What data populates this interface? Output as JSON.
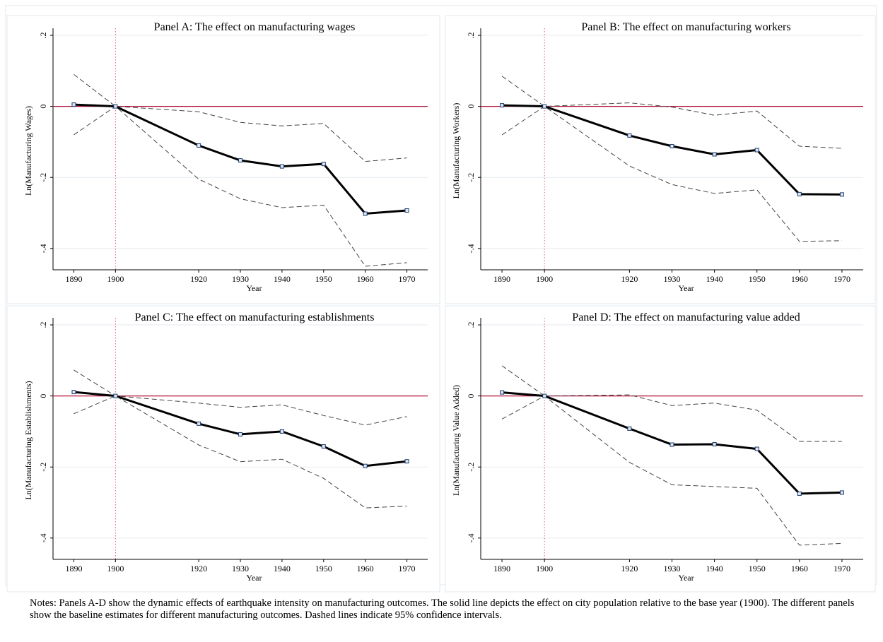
{
  "chart_data": [
    {
      "type": "line",
      "title": "Panel A: The effect on manufacturing wages",
      "xlabel": "Year",
      "ylabel": "Ln(Manufacturing Wages)",
      "x": [
        1890,
        1900,
        1920,
        1930,
        1940,
        1950,
        1960,
        1970
      ],
      "y_ticks": [
        ".2",
        "0",
        "-.2",
        "-.4"
      ],
      "ylim": [
        -0.46,
        0.21
      ],
      "xlim": [
        1885,
        1975
      ],
      "reference_lines": {
        "y": 0,
        "x": 1900
      },
      "series": [
        {
          "style": "solid",
          "values": [
            0.005,
            0.0,
            -0.11,
            -0.152,
            -0.169,
            -0.162,
            -0.302,
            -0.293
          ]
        },
        {
          "style": "dashed",
          "values": [
            0.09,
            0.0,
            -0.015,
            -0.045,
            -0.055,
            -0.048,
            -0.155,
            -0.145
          ]
        },
        {
          "style": "dashed",
          "values": [
            -0.08,
            0.0,
            -0.205,
            -0.26,
            -0.285,
            -0.278,
            -0.45,
            -0.44
          ]
        }
      ]
    },
    {
      "type": "line",
      "title": "Panel B: The effect on manufacturing workers",
      "xlabel": "Year",
      "ylabel": "Ln(Manufacturing Workers)",
      "x": [
        1890,
        1900,
        1920,
        1930,
        1940,
        1950,
        1960,
        1970
      ],
      "y_ticks": [
        ".2",
        "0",
        "-.2",
        "-.4"
      ],
      "ylim": [
        -0.46,
        0.21
      ],
      "xlim": [
        1885,
        1975
      ],
      "reference_lines": {
        "y": 0,
        "x": 1900
      },
      "series": [
        {
          "style": "solid",
          "values": [
            0.003,
            0.0,
            -0.082,
            -0.112,
            -0.135,
            -0.123,
            -0.247,
            -0.248
          ]
        },
        {
          "style": "dashed",
          "values": [
            0.085,
            0.0,
            0.01,
            -0.002,
            -0.025,
            -0.013,
            -0.112,
            -0.118
          ]
        },
        {
          "style": "dashed",
          "values": [
            -0.08,
            0.0,
            -0.168,
            -0.22,
            -0.245,
            -0.235,
            -0.38,
            -0.378
          ]
        }
      ]
    },
    {
      "type": "line",
      "title": "Panel C: The effect on manufacturing establishments",
      "xlabel": "Year",
      "ylabel": "Ln(Manufacturing Establishments)",
      "x": [
        1890,
        1900,
        1920,
        1930,
        1940,
        1950,
        1960,
        1970
      ],
      "y_ticks": [
        ".2",
        "0",
        "-.2",
        "-.4"
      ],
      "ylim": [
        -0.46,
        0.21
      ],
      "xlim": [
        1885,
        1975
      ],
      "reference_lines": {
        "y": 0,
        "x": 1900
      },
      "series": [
        {
          "style": "solid",
          "values": [
            0.011,
            0.0,
            -0.078,
            -0.108,
            -0.1,
            -0.142,
            -0.197,
            -0.184
          ]
        },
        {
          "style": "dashed",
          "values": [
            0.073,
            0.0,
            -0.02,
            -0.032,
            -0.025,
            -0.055,
            -0.082,
            -0.058
          ]
        },
        {
          "style": "dashed",
          "values": [
            -0.05,
            0.0,
            -0.138,
            -0.185,
            -0.178,
            -0.232,
            -0.315,
            -0.31
          ]
        }
      ]
    },
    {
      "type": "line",
      "title": "Panel D: The effect on manufacturing value added",
      "xlabel": "Year",
      "ylabel": "Ln(Manufacturing Value Added)",
      "x": [
        1890,
        1900,
        1920,
        1930,
        1940,
        1950,
        1960,
        1970
      ],
      "y_ticks": [
        ".2",
        "0",
        "-.2",
        "-.4"
      ],
      "ylim": [
        -0.46,
        0.21
      ],
      "xlim": [
        1885,
        1975
      ],
      "reference_lines": {
        "y": 0,
        "x": 1900
      },
      "series": [
        {
          "style": "solid",
          "values": [
            0.01,
            0.0,
            -0.092,
            -0.137,
            -0.136,
            -0.149,
            -0.275,
            -0.272
          ]
        },
        {
          "style": "dashed",
          "values": [
            0.085,
            0.0,
            0.003,
            -0.027,
            -0.02,
            -0.04,
            -0.128,
            -0.128
          ]
        },
        {
          "style": "dashed",
          "values": [
            -0.065,
            0.0,
            -0.187,
            -0.25,
            -0.255,
            -0.26,
            -0.42,
            -0.415
          ]
        }
      ]
    }
  ],
  "notes": "Notes: Panels A-D show the dynamic effects of earthquake intensity on manufacturing outcomes. The solid line depicts the effect on city population relative to the base year (1900). The different panels show the baseline estimates for different manufacturing outcomes. Dashed lines indicate 95% confidence intervals.",
  "colors": {
    "zero_line": "#b0103a",
    "base_year_line": "#e05a7a",
    "marker_fill": "#dce8f5",
    "marker_stroke": "#1f3b6e",
    "grid": "#e6eaf0",
    "panel_border": "#e3e8ee"
  }
}
